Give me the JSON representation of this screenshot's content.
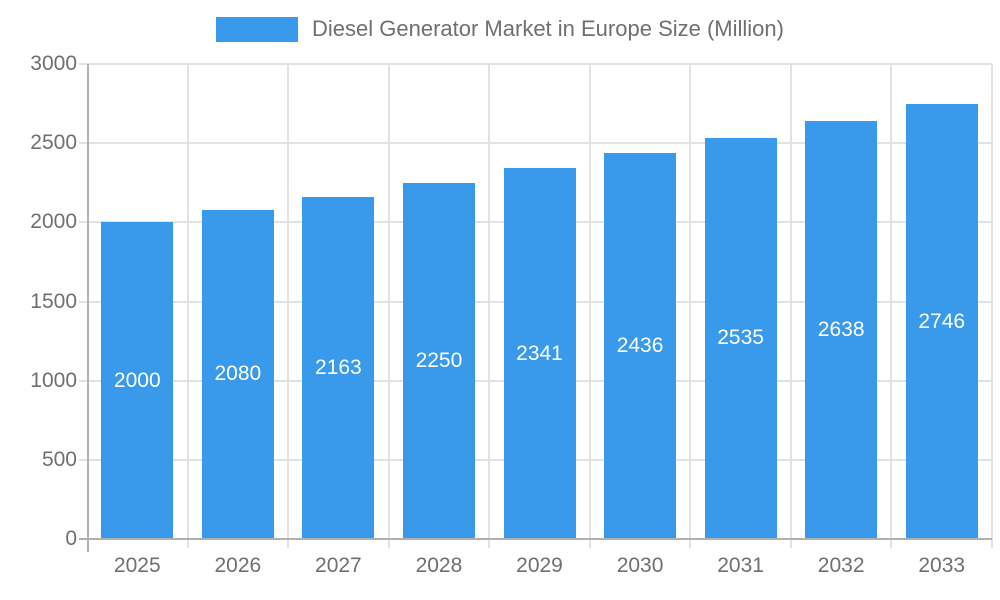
{
  "chart_data": {
    "type": "bar",
    "title": "Diesel Generator Market in Europe Size (Million)",
    "categories": [
      "2025",
      "2026",
      "2027",
      "2028",
      "2029",
      "2030",
      "2031",
      "2032",
      "2033"
    ],
    "values": [
      2000,
      2080,
      2163,
      2250,
      2341,
      2436,
      2535,
      2638,
      2746
    ],
    "xlabel": "",
    "ylabel": "",
    "ylim": [
      0,
      3000
    ],
    "yticks": [
      0,
      500,
      1000,
      1500,
      2000,
      2500,
      3000
    ],
    "legend_position": "top-center",
    "grid": true,
    "value_labels": "inside-middle",
    "colors": {
      "bar": "#3999EB",
      "grid": "#e2e2e2",
      "axis": "#b0b0b0",
      "text": "#6f6f6f",
      "value_label": "#ffffff"
    }
  }
}
